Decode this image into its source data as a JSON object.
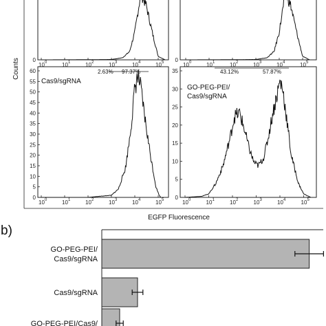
{
  "chart_data": [
    {
      "type": "histogram",
      "panel": "a-top-left",
      "xlabel": "",
      "ylabel": "Counts",
      "x_scale": "log",
      "xlim": [
        1,
        1000000
      ],
      "x_tick_labels": [
        {
          "base": "10",
          "exp": "0"
        },
        {
          "base": "10",
          "exp": "1"
        },
        {
          "base": "10",
          "exp": "2"
        },
        {
          "base": "10",
          "exp": "3"
        },
        {
          "base": "10",
          "exp": "4"
        },
        {
          "base": "10",
          "exp": "5"
        }
      ],
      "y_tick_labels": [
        "0"
      ],
      "series": [
        {
          "x": [
            1,
            100,
            1000,
            3000,
            6000,
            10000,
            18000,
            30000,
            60000,
            100000,
            200000
          ],
          "y": [
            0,
            0.2,
            0.5,
            3,
            12,
            40,
            95,
            80,
            35,
            5,
            0
          ]
        }
      ]
    },
    {
      "type": "histogram",
      "panel": "a-top-right",
      "xlabel": "",
      "x_scale": "log",
      "xlim": [
        1,
        1000000
      ],
      "x_tick_labels": [
        {
          "base": "10",
          "exp": "0"
        },
        {
          "base": "10",
          "exp": "1"
        },
        {
          "base": "10",
          "exp": "2"
        },
        {
          "base": "10",
          "exp": "3"
        },
        {
          "base": "10",
          "exp": "4"
        },
        {
          "base": "10",
          "exp": "5"
        }
      ],
      "y_tick_labels": [
        "0"
      ],
      "series": [
        {
          "x": [
            1,
            100,
            1000,
            3000,
            6000,
            10000,
            18000,
            30000,
            60000,
            100000,
            200000
          ],
          "y": [
            0,
            0.2,
            0.5,
            3,
            12,
            40,
            95,
            80,
            35,
            5,
            0
          ]
        }
      ]
    },
    {
      "type": "histogram",
      "panel": "a-bottom-left",
      "annotation": "Cas9/sgRNA",
      "gate_labels": [
        "2.63%",
        "97.37%"
      ],
      "x_scale": "log",
      "xlim": [
        1,
        200000
      ],
      "ylim": [
        0,
        60
      ],
      "x_tick_labels": [
        {
          "base": "10",
          "exp": "0"
        },
        {
          "base": "10",
          "exp": "1"
        },
        {
          "base": "10",
          "exp": "2"
        },
        {
          "base": "10",
          "exp": "3"
        },
        {
          "base": "10",
          "exp": "4"
        },
        {
          "base": "10",
          "exp": "5"
        }
      ],
      "y_tick_labels": [
        "0",
        "5",
        "10",
        "15",
        "20",
        "25",
        "30",
        "35",
        "40",
        "45",
        "50",
        "55",
        "60"
      ],
      "series": [
        {
          "x": [
            1,
            100,
            300,
            1000,
            2000,
            4000,
            6000,
            8000,
            10000,
            13000,
            16000,
            20000,
            30000,
            50000,
            80000,
            110000,
            130000
          ],
          "y": [
            0,
            0,
            0.5,
            1,
            4,
            14,
            28,
            40,
            52,
            57,
            55,
            48,
            34,
            18,
            5,
            1,
            0
          ]
        }
      ]
    },
    {
      "type": "histogram",
      "panel": "a-bottom-right",
      "annotation": [
        "GO-PEG-PEI/",
        "Cas9/sgRNA"
      ],
      "gate_labels": [
        "43.12%",
        "57.87%"
      ],
      "x_scale": "log",
      "xlim": [
        1,
        400000
      ],
      "ylim": [
        0,
        36
      ],
      "x_tick_labels": [
        {
          "base": "10",
          "exp": "0"
        },
        {
          "base": "10",
          "exp": "1"
        },
        {
          "base": "10",
          "exp": "2"
        },
        {
          "base": "10",
          "exp": "3"
        },
        {
          "base": "10",
          "exp": "4"
        },
        {
          "base": "10",
          "exp": "5"
        }
      ],
      "y_tick_labels": [
        "0",
        "5",
        "10",
        "15",
        "20",
        "25",
        "30",
        "35"
      ],
      "series": [
        {
          "x": [
            1,
            5,
            10,
            20,
            40,
            80,
            120,
            200,
            300,
            500,
            800,
            1200,
            2000,
            3000,
            5000,
            8000,
            10000,
            13000,
            18000,
            30000,
            60000,
            100000,
            200000
          ],
          "y": [
            0,
            0.3,
            1,
            4,
            9,
            17,
            23,
            24,
            20,
            14,
            10,
            9,
            11,
            16,
            24,
            30,
            33,
            31,
            24,
            12,
            4,
            1,
            0
          ]
        }
      ]
    },
    {
      "type": "bar",
      "panel": "b",
      "orientation": "horizontal",
      "categories": [
        {
          "lines": [
            "GO-PEG-PEI/",
            "Cas9/sgRNA"
          ]
        },
        {
          "lines": [
            "Cas9/sgRNA"
          ]
        },
        {
          "lines": [
            "GO-PEG-PEI/Cas9/"
          ]
        }
      ],
      "values": [
        58,
        10,
        5
      ],
      "errors": [
        4,
        1.5,
        1
      ],
      "significance": [
        "**",
        "",
        ""
      ],
      "xlim": [
        0,
        60
      ],
      "bar_color": "#b4b4b4"
    }
  ],
  "figure": {
    "x_axis_title": "EGFP Fluorescence",
    "y_axis_title": "Counts",
    "panel_b_letter": "b)"
  },
  "colors": {
    "line": "#111111",
    "bar_fill": "#b4b4b4",
    "axis": "#222222"
  }
}
